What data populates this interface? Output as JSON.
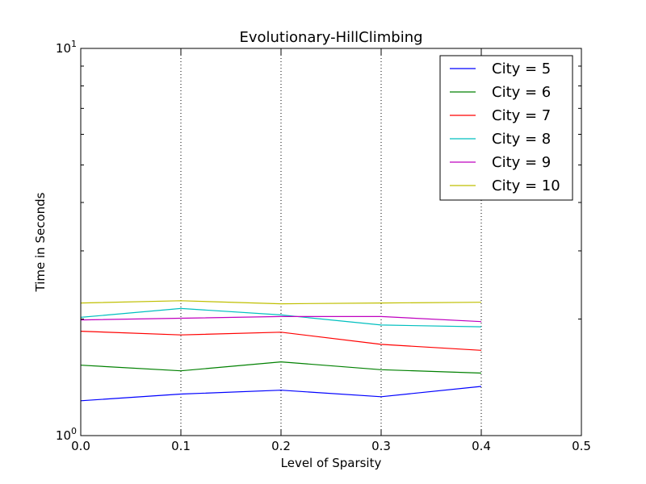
{
  "chart_data": {
    "type": "line",
    "title": "Evolutionary-HillClimbing",
    "xlabel": "Level of Sparsity",
    "ylabel": "Time in Seconds",
    "x": [
      0.0,
      0.1,
      0.2,
      0.3,
      0.4
    ],
    "xlim": [
      0.0,
      0.5
    ],
    "ylim": [
      1,
      10
    ],
    "yscale": "log",
    "x_ticks": [
      "0.0",
      "0.1",
      "0.2",
      "0.3",
      "0.4",
      "0.5"
    ],
    "y_ticks": [
      {
        "base": "10",
        "exp": "0",
        "value": 1
      },
      {
        "base": "10",
        "exp": "1",
        "value": 10
      }
    ],
    "grid": "vertical dotted",
    "legend_position": "upper-right",
    "series": [
      {
        "name": "City = 5",
        "color": "#0000ff",
        "values": [
          1.23,
          1.28,
          1.31,
          1.26,
          1.34
        ]
      },
      {
        "name": "City = 6",
        "color": "#008000",
        "values": [
          1.52,
          1.47,
          1.55,
          1.48,
          1.45
        ]
      },
      {
        "name": "City = 7",
        "color": "#ff0000",
        "values": [
          1.86,
          1.82,
          1.85,
          1.72,
          1.66
        ]
      },
      {
        "name": "City = 8",
        "color": "#00bfbf",
        "values": [
          2.02,
          2.13,
          2.05,
          1.93,
          1.91
        ]
      },
      {
        "name": "City = 9",
        "color": "#bf00bf",
        "values": [
          1.99,
          2.01,
          2.03,
          2.03,
          1.97
        ]
      },
      {
        "name": "City = 10",
        "color": "#bfbf00",
        "values": [
          2.2,
          2.23,
          2.19,
          2.2,
          2.21
        ]
      }
    ]
  }
}
